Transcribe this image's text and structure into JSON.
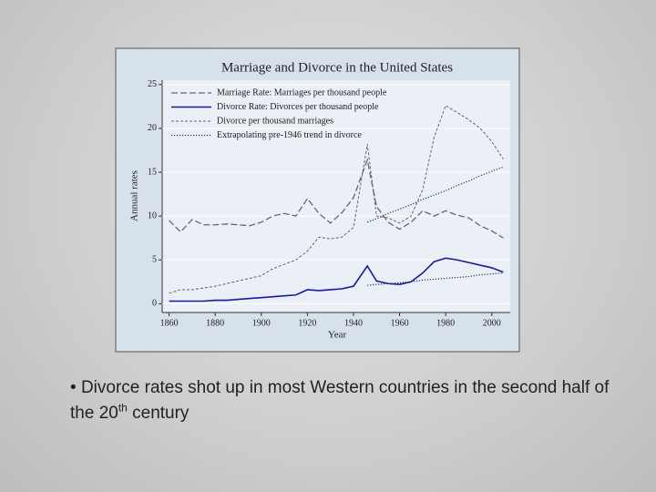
{
  "chart_data": {
    "type": "line",
    "title": "Marriage and Divorce in the United States",
    "y_label": "Annual rates",
    "x_label": "Year",
    "x": [
      1860,
      1865,
      1870,
      1875,
      1880,
      1885,
      1890,
      1895,
      1900,
      1905,
      1910,
      1915,
      1920,
      1925,
      1930,
      1935,
      1940,
      1946,
      1950,
      1955,
      1960,
      1965,
      1970,
      1975,
      1980,
      1985,
      1990,
      1995,
      2000,
      2005
    ],
    "xlim": [
      1857,
      2008
    ],
    "xticks": [
      1860,
      1880,
      1900,
      1920,
      1940,
      1960,
      1980,
      2000
    ],
    "ylim": [
      -1,
      25.5
    ],
    "yticks": [
      0,
      5,
      10,
      15,
      20,
      25
    ],
    "grid": true,
    "series": [
      {
        "name": "Marriage Rate: Marriages per thousand people",
        "color": "#7a5a8a",
        "style": "dashed",
        "values": [
          9.5,
          8.2,
          9.6,
          9.0,
          9.0,
          9.1,
          9.0,
          8.9,
          9.3,
          10.0,
          10.3,
          10.0,
          12.0,
          10.3,
          9.2,
          10.4,
          12.1,
          16.4,
          11.1,
          9.3,
          8.5,
          9.3,
          10.6,
          10.0,
          10.6,
          10.1,
          9.8,
          8.9,
          8.3,
          7.5
        ]
      },
      {
        "name": "Divorce Rate: Divorces per thousand people",
        "color": "#1a1aa0",
        "style": "solid",
        "values": [
          0.3,
          0.3,
          0.3,
          0.3,
          0.4,
          0.4,
          0.5,
          0.6,
          0.7,
          0.8,
          0.9,
          1.0,
          1.6,
          1.5,
          1.6,
          1.7,
          2.0,
          4.3,
          2.6,
          2.3,
          2.2,
          2.5,
          3.5,
          4.8,
          5.2,
          5.0,
          4.7,
          4.4,
          4.1,
          3.6
        ]
      },
      {
        "name": "Divorce per thousand marriages",
        "color": "#666666",
        "style": "dashed-fine",
        "values": [
          1.2,
          1.6,
          1.6,
          1.8,
          2.0,
          2.3,
          2.6,
          2.9,
          3.2,
          4.0,
          4.5,
          5.0,
          6.0,
          7.6,
          7.4,
          7.6,
          8.7,
          18.2,
          10.0,
          9.8,
          9.2,
          10.0,
          13.0,
          19.0,
          22.6,
          21.8,
          21.0,
          20.0,
          18.5,
          16.5
        ]
      },
      {
        "name": "Extrapolating pre-1946 trend in divorce",
        "color": "#223366",
        "style": "dotted",
        "values": [
          null,
          null,
          null,
          null,
          null,
          null,
          null,
          null,
          null,
          null,
          null,
          null,
          null,
          null,
          null,
          null,
          null,
          9.3,
          9.7,
          10.3,
          10.8,
          11.3,
          11.9,
          12.4,
          12.9,
          13.5,
          14.0,
          14.6,
          15.1,
          15.6
        ],
        "rate_values": [
          null,
          null,
          null,
          null,
          null,
          null,
          null,
          null,
          null,
          null,
          null,
          null,
          null,
          null,
          null,
          null,
          null,
          2.1,
          2.2,
          2.3,
          2.4,
          2.5,
          2.7,
          2.8,
          2.9,
          3.0,
          3.1,
          3.3,
          3.4,
          3.5
        ]
      }
    ]
  },
  "bullet": {
    "text": "Divorce rates shot up in most Western countries in the second half of the 20",
    "superscript": "th",
    "text_after": " century"
  }
}
